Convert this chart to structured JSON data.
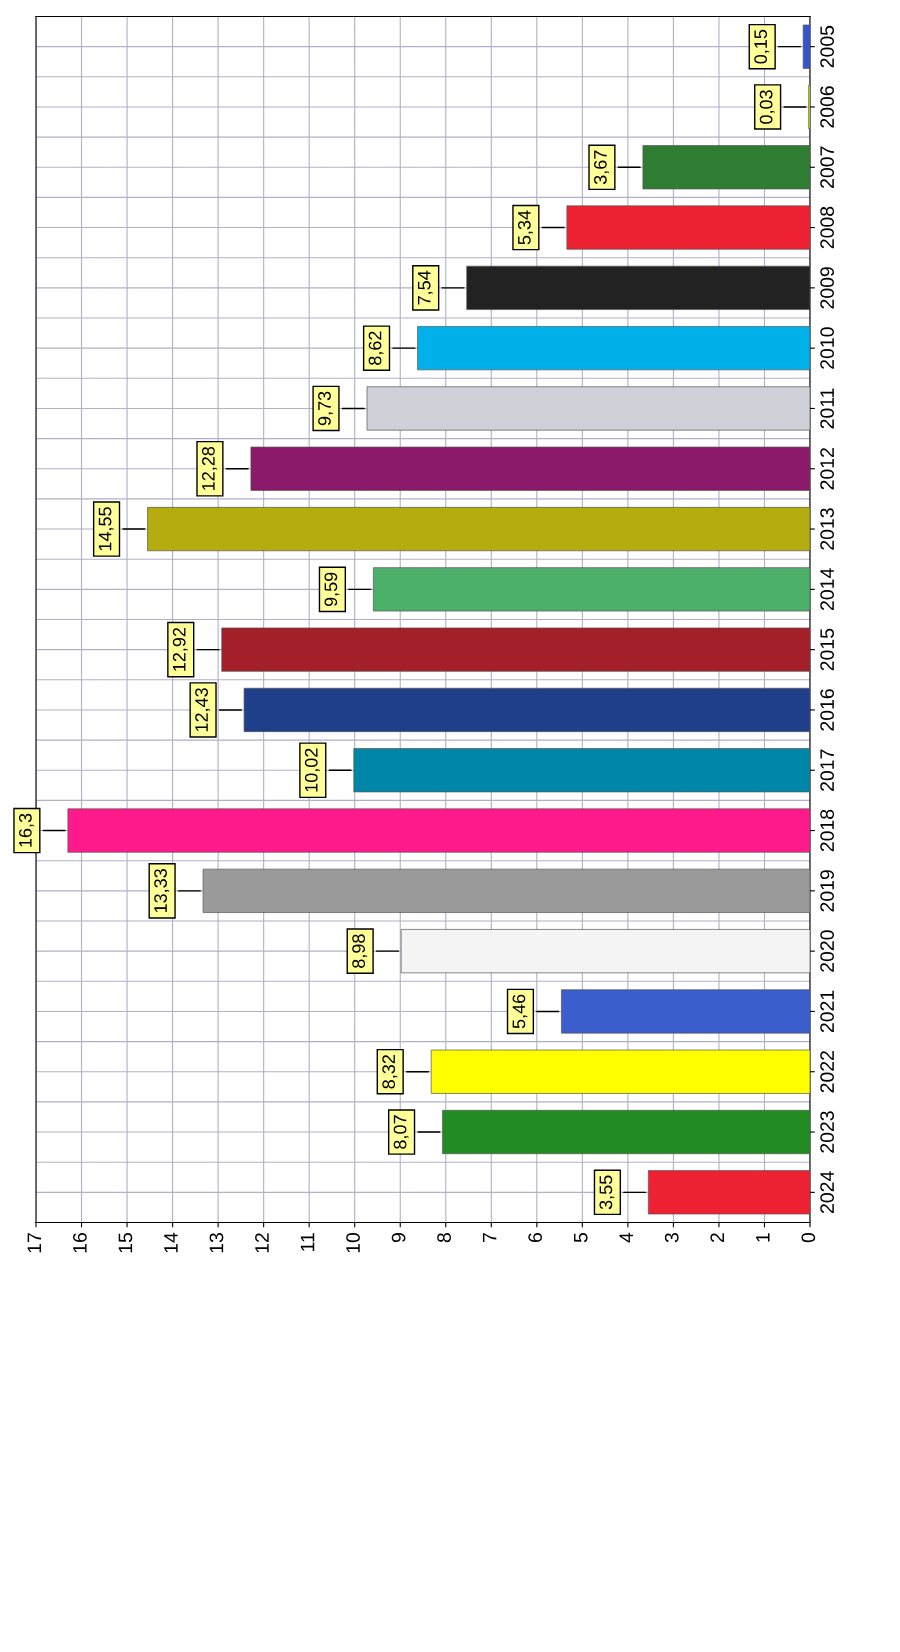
{
  "chart_data": {
    "type": "bar",
    "orientation": "horizontal",
    "categories": [
      "2005",
      "2006",
      "2007",
      "2008",
      "2009",
      "2010",
      "2011",
      "2012",
      "2013",
      "2014",
      "2015",
      "2016",
      "2017",
      "2018",
      "2019",
      "2020",
      "2021",
      "2022",
      "2023",
      "2024"
    ],
    "values": [
      0.15,
      0.03,
      3.67,
      5.34,
      7.54,
      8.62,
      9.73,
      12.28,
      14.55,
      9.59,
      12.92,
      12.43,
      10.02,
      16.3,
      13.33,
      8.98,
      5.46,
      8.32,
      8.07,
      3.55
    ],
    "value_labels": [
      "0,15",
      "0,03",
      "3,67",
      "5,34",
      "7,54",
      "8,62",
      "9,73",
      "12,28",
      "14,55",
      "9,59",
      "12,92",
      "12,43",
      "10,02",
      "16,3",
      "13,33",
      "8,98",
      "5,46",
      "8,32",
      "8,07",
      "3,55"
    ],
    "colors": [
      "#3355cc",
      "#ffff00",
      "#2e7d32",
      "#ee2233",
      "#222222",
      "#00b0e8",
      "#d0d0d8",
      "#8b1a6b",
      "#b5ad10",
      "#4caf6a",
      "#a31f2a",
      "#1f3f8a",
      "#0086a8",
      "#ff1a8c",
      "#9a9a9a",
      "#f4f4f4",
      "#3a5fcd",
      "#ffff00",
      "#228b22",
      "#ee2233"
    ],
    "xlim": [
      17,
      0
    ],
    "xticks": [
      17,
      16,
      15,
      14,
      13,
      12,
      11,
      10,
      9,
      8,
      7,
      6,
      5,
      4,
      3,
      2,
      1,
      0
    ],
    "grid": true
  }
}
